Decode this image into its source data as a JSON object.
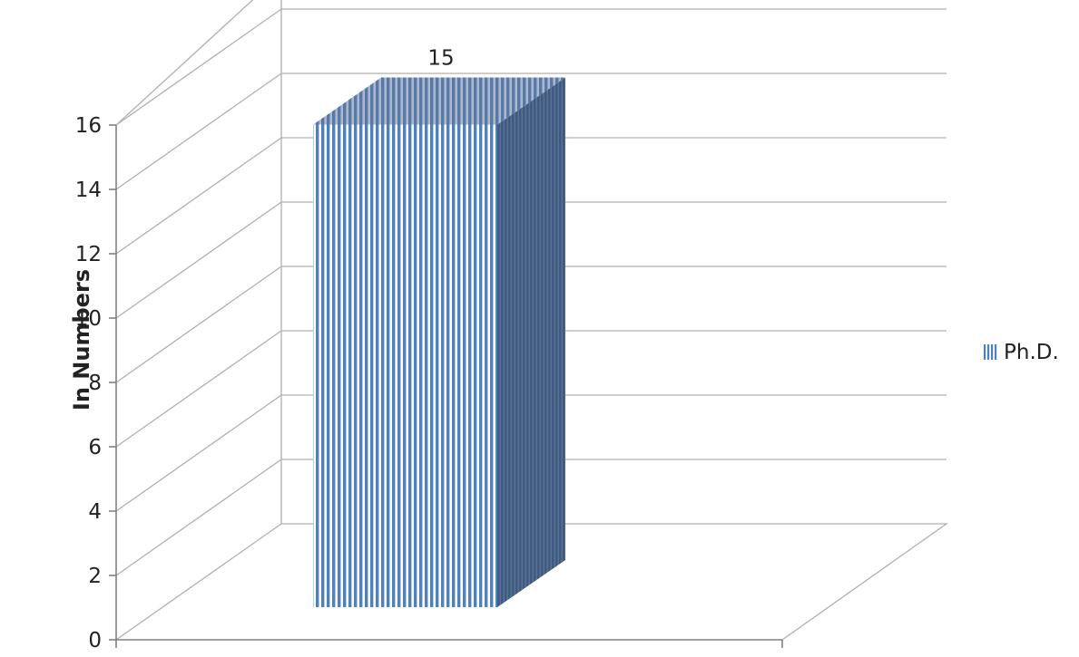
{
  "chart_data": {
    "type": "bar",
    "categories": [
      ""
    ],
    "series": [
      {
        "name": "Ph.D.",
        "values": [
          15
        ]
      }
    ],
    "data_labels": [
      "15"
    ],
    "ylabel": "In Numbers",
    "xlabel": "",
    "ylim": [
      0,
      16
    ],
    "yticks": [
      0,
      2,
      4,
      6,
      8,
      10,
      12,
      14,
      16
    ],
    "grid": true,
    "legend_position": "right",
    "style": "3d-column",
    "colors": {
      "bar_stripe": "#4f81bd",
      "bar_gap": "#ffffff",
      "grid": "#b0b0b0",
      "axis": "#808080"
    }
  }
}
